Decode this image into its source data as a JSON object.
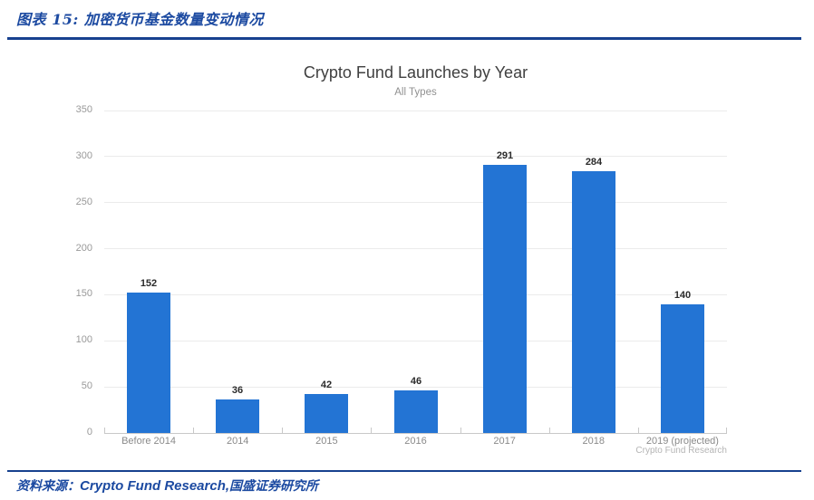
{
  "header": {
    "figure_title": "图表 15: 加密货币基金数量变动情况"
  },
  "footer": {
    "source_prefix": "资料来源：",
    "source_english": "Crypto Fund Research,",
    "source_suffix": "国盛证券研究所"
  },
  "colors": {
    "accent_navy": "#17418f",
    "heading_blue": "#1c4aa1",
    "bar_blue": "#2374d4",
    "gridline": "#ebebeb",
    "axis_line": "#c8c8c8"
  },
  "chart_data": {
    "type": "bar",
    "title": "Crypto Fund Launches by Year",
    "subtitle": "All Types",
    "categories": [
      "Before 2014",
      "2014",
      "2015",
      "2016",
      "2017",
      "2018",
      "2019 (projected)"
    ],
    "values": [
      152,
      36,
      42,
      46,
      291,
      284,
      140
    ],
    "xlabel": "",
    "ylabel": "",
    "ylim": [
      0,
      350
    ],
    "ytick_step": 50,
    "yticks": [
      0,
      50,
      100,
      150,
      200,
      250,
      300,
      350
    ],
    "grid": "horizontal",
    "legend": "none",
    "attribution": "Crypto Fund Research"
  }
}
